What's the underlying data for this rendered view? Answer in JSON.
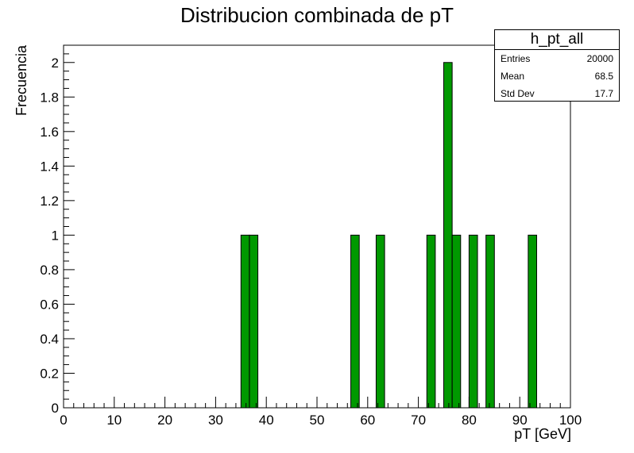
{
  "chart_data": {
    "type": "bar",
    "title": "Distribucion combinada de pT",
    "xlabel": "pT [GeV]",
    "ylabel": "Frecuencia",
    "xlim": [
      0,
      100
    ],
    "ylim": [
      0,
      2.1
    ],
    "bin_width": 1.6667,
    "x_ticks": [
      "0",
      "10",
      "20",
      "30",
      "40",
      "50",
      "60",
      "70",
      "80",
      "90",
      "100"
    ],
    "y_ticks": [
      "0",
      "0.2",
      "0.4",
      "0.6",
      "0.8",
      "1",
      "1.2",
      "1.4",
      "1.6",
      "1.8",
      "2"
    ],
    "bins": [
      {
        "x": 35.0,
        "value": 1
      },
      {
        "x": 36.67,
        "value": 1
      },
      {
        "x": 56.67,
        "value": 1
      },
      {
        "x": 61.67,
        "value": 1
      },
      {
        "x": 71.67,
        "value": 1
      },
      {
        "x": 75.0,
        "value": 2
      },
      {
        "x": 76.67,
        "value": 1
      },
      {
        "x": 80.0,
        "value": 1
      },
      {
        "x": 83.33,
        "value": 1
      },
      {
        "x": 91.67,
        "value": 1
      }
    ],
    "bar_color": "#009900",
    "grid": false,
    "stats_box": {
      "name": "h_pt_all",
      "entries_label": "Entries",
      "entries": "20000",
      "mean_label": "Mean",
      "mean": "68.5",
      "std_label": "Std Dev",
      "std": "17.7"
    }
  }
}
